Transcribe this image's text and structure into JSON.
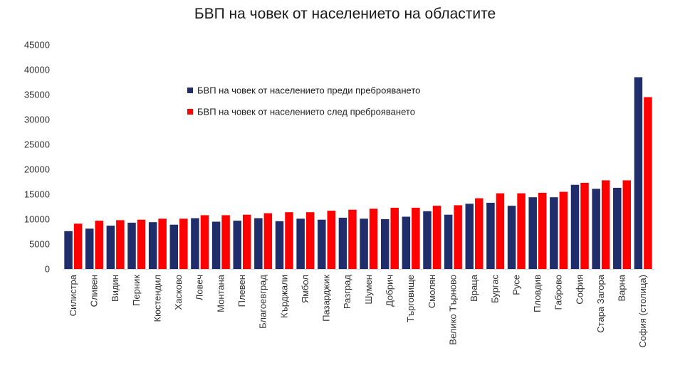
{
  "chart_data": {
    "type": "bar",
    "title": "БВП на човек от населението на областите",
    "xlabel": "",
    "ylabel": "",
    "ylim": [
      0,
      45000
    ],
    "yticks": [
      0,
      5000,
      10000,
      15000,
      20000,
      25000,
      30000,
      35000,
      40000,
      45000
    ],
    "grid": false,
    "legend_position": "top-left inside plot",
    "categories": [
      "Силистра",
      "Сливен",
      "Видин",
      "Перник",
      "Кюстендил",
      "Хасково",
      "Ловеч",
      "Монтана",
      "Плевен",
      "Благоевград",
      "Кърджали",
      "Ямбол",
      "Пазарджик",
      "Разград",
      "Шумен",
      "Добрич",
      "Търговище",
      "Смолян",
      "Велико Търново",
      "Враца",
      "Бургас",
      "Русе",
      "Пловдив",
      "Габрово",
      "София",
      "Стара Загора",
      "Варна",
      "София (столица)"
    ],
    "series": [
      {
        "name": "БВП на човек от населението преди преброяването",
        "color": "#1f2d6b",
        "values": [
          7600,
          8100,
          8700,
          9300,
          9400,
          8900,
          10200,
          9500,
          9700,
          10200,
          9600,
          10100,
          9900,
          10300,
          10100,
          10000,
          10500,
          11600,
          10900,
          13100,
          13300,
          12700,
          14400,
          14400,
          16900,
          16100,
          16300,
          38500
        ]
      },
      {
        "name": "БВП на човек от населението след преброяването",
        "color": "#ff0000",
        "values": [
          9100,
          9700,
          9800,
          9900,
          10100,
          10100,
          10800,
          10800,
          10900,
          11200,
          11400,
          11400,
          11700,
          11900,
          12100,
          12300,
          12300,
          12700,
          12800,
          14200,
          15200,
          15200,
          15300,
          15500,
          17300,
          17800,
          17800,
          34500
        ]
      }
    ]
  }
}
